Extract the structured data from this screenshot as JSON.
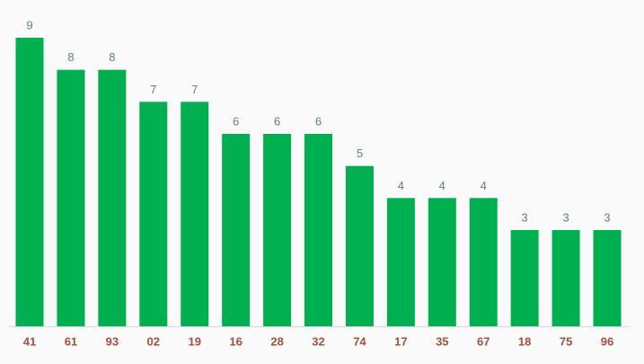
{
  "chart_data": {
    "type": "bar",
    "categories": [
      "41",
      "61",
      "93",
      "02",
      "19",
      "16",
      "28",
      "32",
      "74",
      "17",
      "35",
      "67",
      "18",
      "75",
      "96"
    ],
    "values": [
      9,
      8,
      8,
      7,
      7,
      6,
      6,
      6,
      5,
      4,
      4,
      4,
      3,
      3,
      3
    ],
    "color": "#00b050"
  }
}
